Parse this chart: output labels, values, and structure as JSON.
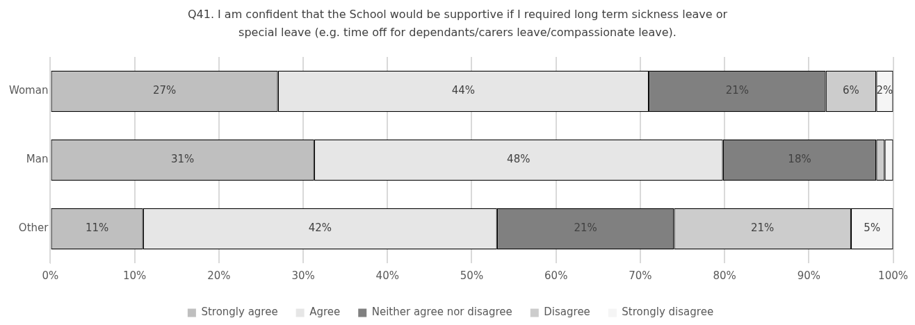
{
  "chart_data": {
    "type": "bar",
    "orientation": "horizontal",
    "stacked": true,
    "title": "Q41. I am confident that the School would be supportive if I required long term sickness leave or special leave (e.g. time off for dependants/carers leave/compassionate leave).",
    "categories": [
      "Woman",
      "Man",
      "Other"
    ],
    "series": [
      {
        "name": "Strongly agree",
        "color": "#bfbfbf",
        "values": [
          27,
          31.3,
          11
        ],
        "value_labels": [
          "27%",
          "31%",
          "11%"
        ]
      },
      {
        "name": "Agree",
        "color": "#e6e6e6",
        "values": [
          44,
          48.5,
          42
        ],
        "value_labels": [
          "44%",
          "48%",
          "42%"
        ]
      },
      {
        "name": "Neither agree nor disagree",
        "color": "#808080",
        "values": [
          21,
          18.2,
          21
        ],
        "value_labels": [
          "21%",
          "18%",
          "21%"
        ]
      },
      {
        "name": "Disagree",
        "color": "#cccccc",
        "values": [
          6,
          1,
          21
        ],
        "value_labels": [
          "6%",
          null,
          "21%"
        ]
      },
      {
        "name": "Strongly disagree",
        "color": "#f5f5f5",
        "values": [
          2,
          1,
          5
        ],
        "value_labels": [
          "2%",
          null,
          "5%"
        ]
      }
    ],
    "xlim": [
      0,
      100
    ],
    "xticks": [
      {
        "value": 0,
        "label": "0%"
      },
      {
        "value": 10,
        "label": "10%"
      },
      {
        "value": 20,
        "label": "20%"
      },
      {
        "value": 30,
        "label": "30%"
      },
      {
        "value": 40,
        "label": "40%"
      },
      {
        "value": 50,
        "label": "50%"
      },
      {
        "value": 60,
        "label": "60%"
      },
      {
        "value": 70,
        "label": "70%"
      },
      {
        "value": 80,
        "label": "80%"
      },
      {
        "value": 90,
        "label": "90%"
      },
      {
        "value": 100,
        "label": "100%"
      }
    ],
    "grid": "x",
    "legend": "bottom"
  }
}
